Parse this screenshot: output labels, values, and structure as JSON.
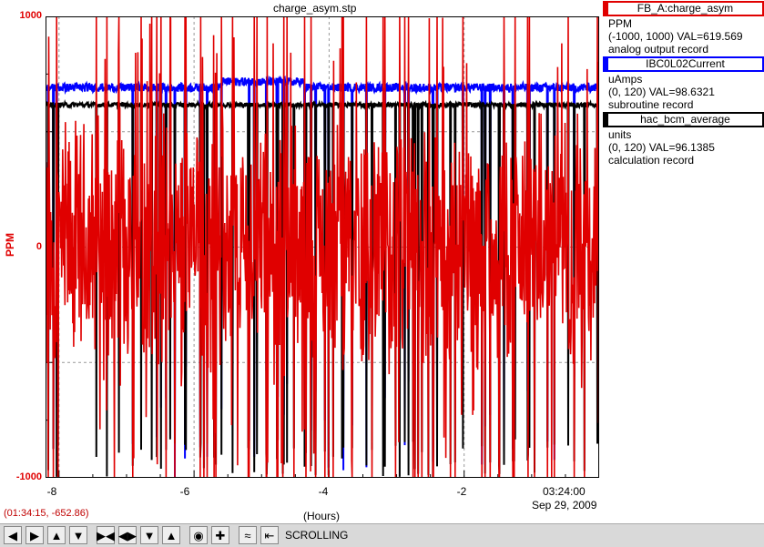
{
  "window": {
    "title": "charge_asym.stp"
  },
  "legend": [
    {
      "name": "FB_A:charge_asym",
      "units": "PPM",
      "range_val": "(-1000, 1000) VAL=619.569",
      "record": "analog output record",
      "color": "#e00000"
    },
    {
      "name": "IBC0L02Current",
      "units": "uAmps",
      "range_val": "(0, 120) VAL=98.6321",
      "record": "subroutine record",
      "color": "#0000ff"
    },
    {
      "name": "hac_bcm_average",
      "units": "units",
      "range_val": "(0, 120) VAL=96.1385",
      "record": "calculation record",
      "color": "#000000"
    }
  ],
  "cursor_readout": "(01:34:15, -652.86)",
  "x_end_time": "03:24:00",
  "x_end_date": "Sep 29, 2009",
  "toolbar": {
    "mode": "SCROLLING",
    "buttons": [
      "arrow-left-icon",
      "arrow-right-icon",
      "arrow-up-icon",
      "arrow-down-icon",
      "zoom-in-horizontal-icon",
      "zoom-out-horizontal-icon",
      "zoom-in-vertical-icon",
      "zoom-out-vertical-icon",
      "center-icon",
      "crosshair-icon",
      "auto-scale-icon",
      "scroll-mode-icon"
    ]
  },
  "chart_data": {
    "type": "line",
    "title": "charge_asym.stp",
    "xlabel": "(Hours)",
    "ylabel": "PPM",
    "xlim": [
      -8.2,
      0
    ],
    "ylim": [
      -1000,
      1000
    ],
    "x_ticks": [
      "-8",
      "-6",
      "-4",
      "-2"
    ],
    "y_ticks": [
      "1000",
      "0",
      "-1000"
    ],
    "grid": true,
    "series": [
      {
        "name": "FB_A:charge_asym",
        "color": "#e00000",
        "range": [
          -1000,
          1000
        ],
        "description_level": 0,
        "noise_amplitude": 450
      },
      {
        "name": "IBC0L02Current",
        "color": "#0000ff",
        "range": [
          0,
          120
        ],
        "level": 100
      },
      {
        "name": "hac_bcm_average",
        "color": "#000000",
        "range": [
          0,
          120
        ],
        "level": 97
      }
    ]
  }
}
